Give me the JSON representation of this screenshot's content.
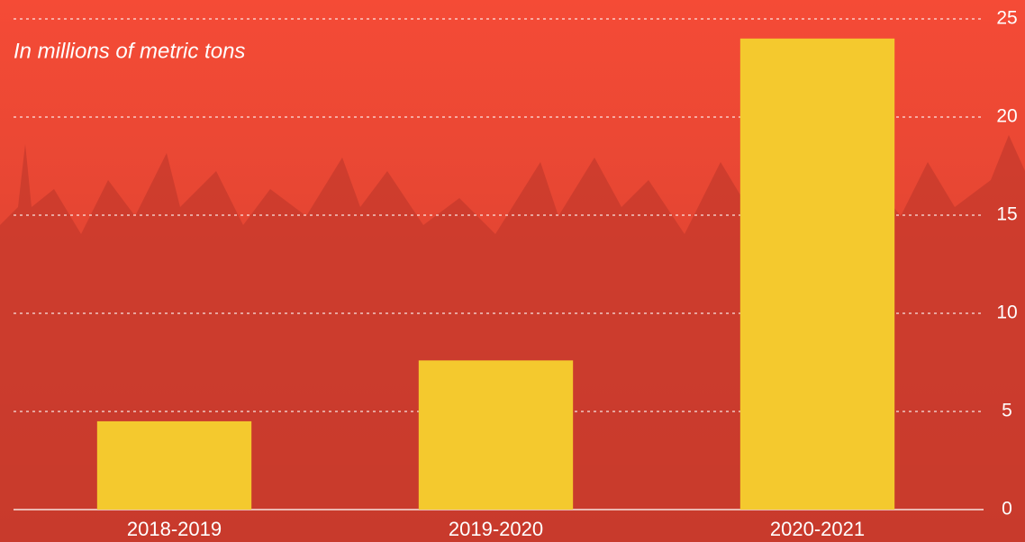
{
  "chart_data": {
    "type": "bar",
    "subtitle": "In millions of metric tons",
    "categories": [
      "2018-2019",
      "2019-2020",
      "2020-2021"
    ],
    "values": [
      4.5,
      7.6,
      24
    ],
    "color": "#f4c92e",
    "ylim": [
      0,
      25
    ],
    "yticks": [
      0,
      5,
      10,
      15,
      20,
      25
    ],
    "grid": true
  }
}
